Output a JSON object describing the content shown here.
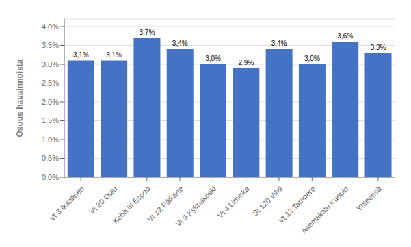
{
  "chart_data": {
    "type": "bar",
    "categories": [
      "Vt 3 Ikaalinen",
      "Vt 20 Oulu",
      "Kehä III Espoo",
      "Vt 12 Pälkäne",
      "Vt 9 Kylmäkoski",
      "Vt 4 Liminka",
      "St 120 Vihti",
      "Vt 12 Tampere",
      "Asemakatu Kuopio",
      "Yhteensä"
    ],
    "values": [
      0.031,
      0.031,
      0.037,
      0.034,
      0.03,
      0.029,
      0.034,
      0.03,
      0.036,
      0.033
    ],
    "value_labels": [
      "3,1%",
      "3,1%",
      "3,7%",
      "3,4%",
      "3,0%",
      "2,9%",
      "3,4%",
      "3,0%",
      "3,6%",
      "3,3%"
    ],
    "data_labels": true,
    "color": "#4472C4",
    "ylabel": "Osuus havainnoista",
    "ylim": [
      0.0,
      0.042
    ],
    "yticks": [
      {
        "value": 0.0,
        "label": "0,0%"
      },
      {
        "value": 0.005,
        "label": "0,5%"
      },
      {
        "value": 0.01,
        "label": "1,0%"
      },
      {
        "value": 0.015,
        "label": "1,5%"
      },
      {
        "value": 0.02,
        "label": "2,0%"
      },
      {
        "value": 0.025,
        "label": "2,5%"
      },
      {
        "value": 0.03,
        "label": "3,0%"
      },
      {
        "value": 0.035,
        "label": "3,5%"
      },
      {
        "value": 0.04,
        "label": "4,0%"
      }
    ],
    "grid": true
  }
}
